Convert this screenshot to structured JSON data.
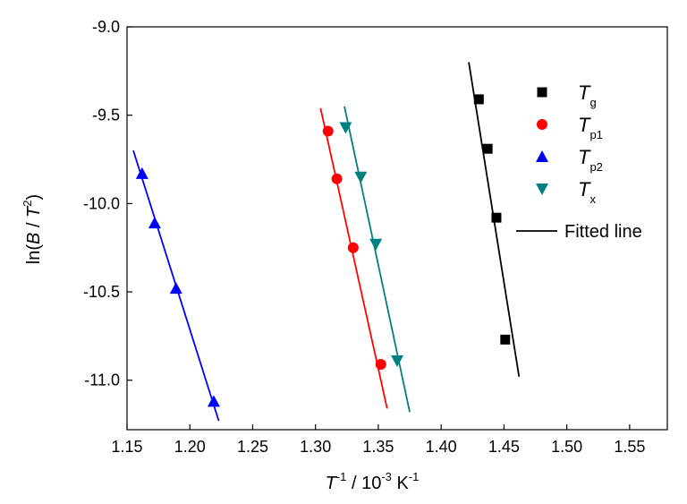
{
  "chart_data": {
    "type": "scatter",
    "title": "",
    "xlabel": {
      "main": "T",
      "sup1": "-1",
      "mid": " / 10",
      "sup2": "-3",
      "unit": " K",
      "sup3": "-1"
    },
    "ylabel": {
      "pre": "ln(",
      "B": "B",
      "slash": " / ",
      "T": "T",
      "sup": "2",
      "post": ")"
    },
    "xlim": [
      1.15,
      1.58
    ],
    "ylim": [
      -11.28,
      -9.0
    ],
    "grid": false,
    "legend_position": "top-right",
    "x_ticks": [
      "1.15",
      "1.20",
      "1.25",
      "1.30",
      "1.35",
      "1.40",
      "1.45",
      "1.50",
      "1.55"
    ],
    "y_ticks": [
      "-9.0",
      "-9.5",
      "-10.0",
      "-10.5",
      "-11.0"
    ],
    "series": [
      {
        "name": "g",
        "marker": "square",
        "color": "#000000",
        "x": [
          1.43,
          1.437,
          1.444,
          1.451
        ],
        "y": [
          -9.41,
          -9.69,
          -10.08,
          -10.77
        ],
        "fit": {
          "x": [
            1.422,
            1.462
          ],
          "y": [
            -9.2,
            -10.98
          ]
        }
      },
      {
        "name": "p1",
        "marker": "circle",
        "color": "#ff0000",
        "x": [
          1.31,
          1.317,
          1.33,
          1.352
        ],
        "y": [
          -9.59,
          -9.86,
          -10.25,
          -10.91
        ],
        "fit": {
          "x": [
            1.304,
            1.357
          ],
          "y": [
            -9.46,
            -11.16
          ]
        }
      },
      {
        "name": "p2",
        "marker": "triangle-up",
        "color": "#0000ff",
        "x": [
          1.162,
          1.172,
          1.189,
          1.219
        ],
        "y": [
          -9.83,
          -10.11,
          -10.48,
          -11.12
        ],
        "fit": {
          "x": [
            1.155,
            1.223
          ],
          "y": [
            -9.7,
            -11.23
          ]
        }
      },
      {
        "name": "x",
        "marker": "triangle-down",
        "color": "#008080",
        "x": [
          1.324,
          1.336,
          1.348,
          1.365
        ],
        "y": [
          -9.57,
          -9.85,
          -10.23,
          -10.89
        ],
        "fit": {
          "x": [
            1.323,
            1.375
          ],
          "y": [
            -9.45,
            -11.18
          ]
        }
      }
    ],
    "legend": {
      "entries": [
        {
          "symbol": "T",
          "sub": "g",
          "marker": "square",
          "color": "#000000"
        },
        {
          "symbol": "T",
          "sub": "p1",
          "marker": "circle",
          "color": "#ff0000"
        },
        {
          "symbol": "T",
          "sub": "p2",
          "marker": "triangle-up",
          "color": "#0000ff"
        },
        {
          "symbol": "T",
          "sub": "x",
          "marker": "triangle-down",
          "color": "#008080"
        }
      ],
      "line_label": "Fitted line",
      "line_color": "#000000"
    }
  }
}
